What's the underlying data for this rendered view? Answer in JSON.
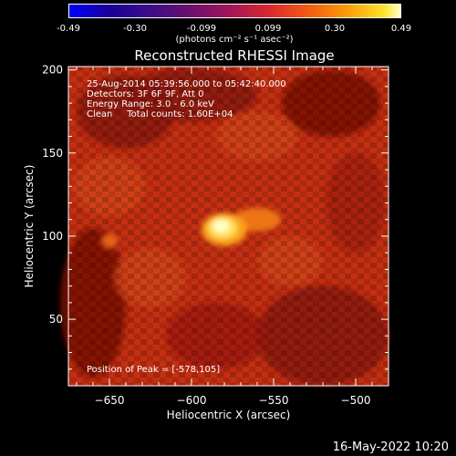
{
  "colorbar": {
    "ticks": [
      "-0.49",
      "-0.30",
      "-0.099",
      "0.099",
      "0.30",
      "0.49"
    ],
    "units": "(photons cm⁻² s⁻¹ asec⁻²)"
  },
  "chart_data": {
    "type": "heatmap",
    "title": "Reconstructed RHESSI Image",
    "xlabel": "Heliocentric X (arcsec)",
    "ylabel": "Heliocentric Y (arcsec)",
    "xlim": [
      -675,
      -480
    ],
    "ylim": [
      10,
      202
    ],
    "xticks": [
      -650,
      -600,
      -550,
      -500
    ],
    "yticks": [
      50,
      100,
      150,
      200
    ],
    "colorscale_range": [
      -0.49,
      0.49
    ],
    "peak_position": [
      -578,
      105
    ],
    "annotations": [
      "25-Aug-2014 05:39:56.000 to 05:42:40.000",
      "Detectors: 3F 6F 9F, Att 0",
      "Energy Range: 3.0 - 6.0 keV",
      "Clean     Total counts: 1.60E+04"
    ],
    "peak_label": "Position of Peak = [-578,105]"
  },
  "footer": {
    "timestamp": "16-May-2022 10:20"
  }
}
